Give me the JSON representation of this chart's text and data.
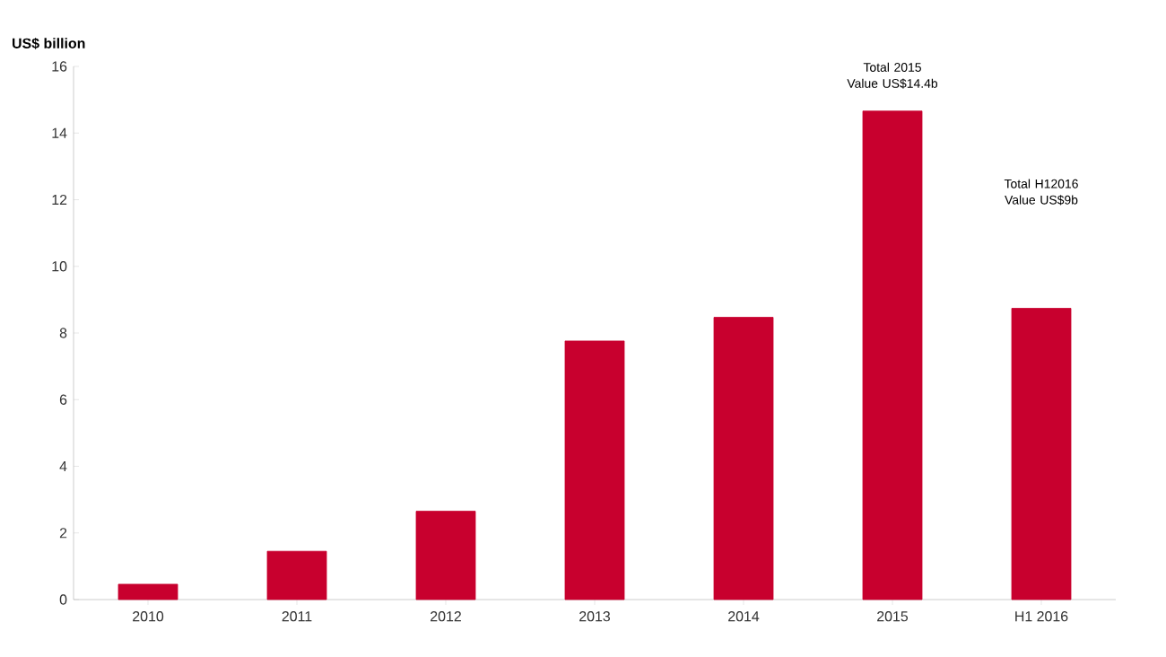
{
  "chart_data": {
    "type": "bar",
    "ylabel": "US$ billion",
    "categories": [
      "2010",
      "2011",
      "2012",
      "2013",
      "2014",
      "2015",
      "H1 2016"
    ],
    "values": [
      0.46,
      1.45,
      2.65,
      7.76,
      8.47,
      14.66,
      8.74
    ],
    "color": "#c8002e",
    "ylim": [
      0,
      16
    ],
    "yticks": [
      0,
      2,
      4,
      6,
      8,
      10,
      12,
      14,
      16
    ],
    "grid": false,
    "annotations": [
      "Total 2015 Value US$14.4b",
      "Total H12016 Value US$9b"
    ]
  }
}
